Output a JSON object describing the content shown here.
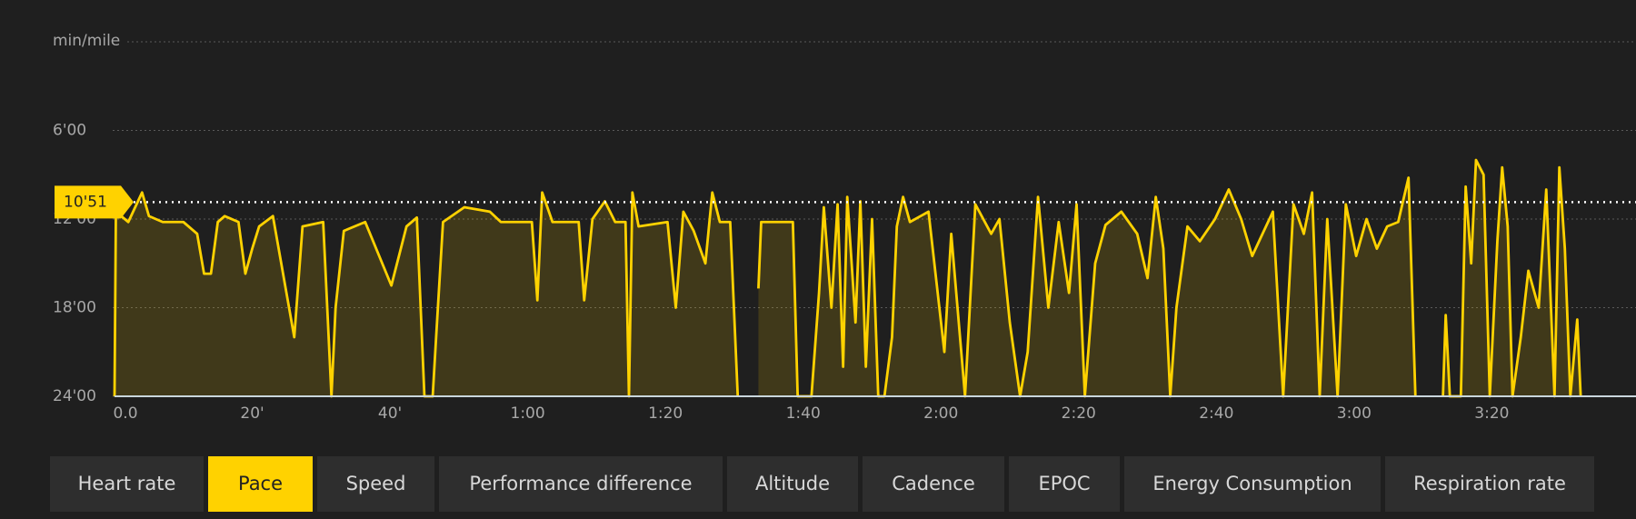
{
  "chart_data": {
    "type": "line",
    "y_label": "min/mile",
    "ylim": [
      0,
      24
    ],
    "y_inverted": true,
    "yticks": [
      {
        "value": 6,
        "label": "6'00"
      },
      {
        "value": 12,
        "label": "12'00"
      },
      {
        "value": 18,
        "label": "18'00"
      },
      {
        "value": 24,
        "label": "24'00"
      }
    ],
    "xlim": [
      0,
      221
    ],
    "xticks": [
      {
        "value": 0,
        "label": "0.0"
      },
      {
        "value": 20,
        "label": "20'"
      },
      {
        "value": 40,
        "label": "40'"
      },
      {
        "value": 60,
        "label": "1:00"
      },
      {
        "value": 80,
        "label": "1:20"
      },
      {
        "value": 100,
        "label": "1:40"
      },
      {
        "value": 120,
        "label": "2:00"
      },
      {
        "value": 140,
        "label": "2:20"
      },
      {
        "value": 160,
        "label": "2:40"
      },
      {
        "value": 180,
        "label": "3:00"
      },
      {
        "value": 200,
        "label": "3:20"
      }
    ],
    "grid": true,
    "marker": {
      "value": 10.85,
      "label": "10'51"
    },
    "x": [
      0,
      0.2,
      2,
      4,
      5,
      7,
      10,
      12,
      13,
      14,
      15,
      16,
      18,
      19,
      20,
      21,
      23,
      26.1,
      27.3,
      30.3,
      31.5,
      32.1,
      33.3,
      36.4,
      40.2,
      42.4,
      43.9,
      45,
      46.2,
      46.7,
      47.7,
      50.8,
      54.5,
      56.1,
      60.6,
      61.4,
      62.1,
      63.6,
      67.4,
      68.2,
      69.4,
      71.2,
      72.7,
      74.2,
      74.7,
      75.2,
      76.1,
      80.3,
      81.5,
      82.6,
      84.1,
      85.8,
      86.8,
      87.9,
      89.4,
      90.5,
      92,
      93.5,
      93.9,
      98.5,
      99.2,
      101.2,
      102.3,
      103,
      104.1,
      105,
      105.8,
      106.4,
      107.6,
      108.3,
      109.1,
      110,
      110.9,
      111.8,
      112.9,
      113.6,
      114.5,
      115.5,
      118.2,
      120.5,
      121.5,
      123.5,
      125,
      127.3,
      128.5,
      130,
      131.5,
      132.6,
      134.1,
      135.6,
      137.1,
      138.6,
      139.7,
      140.9,
      142.4,
      143.9,
      146.2,
      148.5,
      150,
      151.2,
      152.3,
      153.3,
      154.2,
      155.8,
      157.6,
      159.8,
      161.8,
      163.6,
      165.2,
      166.7,
      168.2,
      169.7,
      171.2,
      172.7,
      173.9,
      175,
      176.1,
      177.6,
      178.8,
      180.3,
      181.8,
      183.3,
      184.8,
      186.4,
      187.9,
      188.9,
      191,
      192.9,
      193.3,
      193.9,
      195.5,
      196.2,
      197,
      197.7,
      198.8,
      199.7,
      200.8,
      201.5,
      202.3,
      203,
      204.2,
      205.3,
      206.8,
      207.9,
      209.1,
      209.8,
      210.6,
      211.4,
      212.4,
      212.9
    ],
    "series": [
      {
        "name": "Pace",
        "color": "#ffd200",
        "values": [
          24,
          11.5,
          12.2,
          10.2,
          11.8,
          12.2,
          12.2,
          13,
          15.7,
          15.7,
          12.2,
          11.8,
          12.2,
          15.7,
          14,
          12.5,
          11.8,
          20,
          12.5,
          12.2,
          24,
          18,
          12.8,
          12.2,
          16.5,
          12.5,
          11.9,
          24,
          24,
          20,
          12.2,
          11.2,
          11.5,
          12.2,
          12.2,
          17.5,
          10.2,
          12.2,
          12.2,
          17.5,
          12,
          10.8,
          12.2,
          12.2,
          24,
          10.2,
          12.5,
          12.2,
          18,
          11.5,
          12.8,
          15,
          10.2,
          12.2,
          12.2,
          24,
          null,
          16.7,
          12.2,
          12.2,
          24,
          24,
          17,
          11.2,
          18,
          11,
          22,
          10.5,
          19,
          10.8,
          22,
          12,
          24,
          24,
          20,
          12.5,
          10.5,
          12.2,
          11.5,
          21,
          13,
          24,
          11,
          13,
          12,
          19,
          24,
          21,
          10.5,
          18,
          12.2,
          17,
          11,
          24,
          15,
          12.4,
          11.5,
          13,
          16,
          10.5,
          14,
          24,
          18,
          12.5,
          13.5,
          12,
          10,
          12,
          14.5,
          13,
          11.5,
          24,
          11,
          13,
          10.2,
          24,
          12,
          24,
          11,
          14.5,
          12,
          14,
          12.5,
          12.2,
          9.2,
          24,
          null,
          24,
          18.5,
          24,
          24,
          9.8,
          15,
          8,
          9,
          24,
          13.5,
          8.5,
          12.5,
          24,
          20,
          15.5,
          18,
          10,
          24,
          8.5,
          14,
          24,
          18.8,
          24
        ]
      }
    ]
  },
  "tabs": {
    "items": [
      "Heart rate",
      "Pace",
      "Speed",
      "Performance difference",
      "Altitude",
      "Cadence",
      "EPOC",
      "Energy Consumption",
      "Respiration rate"
    ],
    "selected": 1
  }
}
